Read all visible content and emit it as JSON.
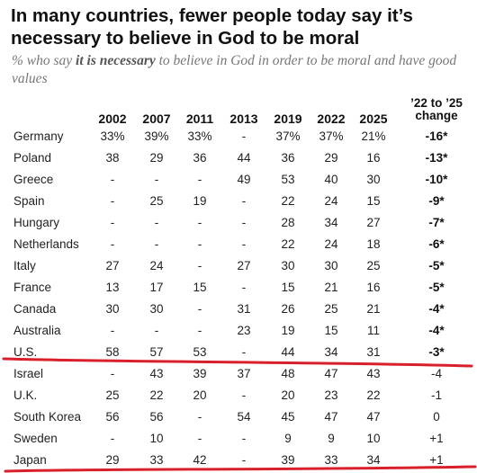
{
  "title": "In many countries, fewer people today say it’s necessary to believe in God to be moral",
  "subtitle": {
    "before": "% who say ",
    "emphasis": "it is necessary",
    "after": " to believe in God in order to be moral and have good values"
  },
  "change_header": [
    "’22 to ’25",
    "change"
  ],
  "colors": {
    "highlight_line": "#d9202a",
    "text": "#222222"
  },
  "chart_data": {
    "type": "table",
    "columns": [
      "2002",
      "2007",
      "2011",
      "2013",
      "2019",
      "2022",
      "2025"
    ],
    "rows": [
      {
        "country": "Germany",
        "values": [
          "33%",
          "39%",
          "33%",
          "-",
          "37%",
          "37%",
          "21%"
        ],
        "change": "-16*"
      },
      {
        "country": "Poland",
        "values": [
          "38",
          "29",
          "36",
          "44",
          "36",
          "29",
          "16"
        ],
        "change": "-13*"
      },
      {
        "country": "Greece",
        "values": [
          "-",
          "-",
          "-",
          "49",
          "53",
          "40",
          "30"
        ],
        "change": "-10*"
      },
      {
        "country": "Spain",
        "values": [
          "-",
          "25",
          "19",
          "-",
          "22",
          "24",
          "15"
        ],
        "change": "-9*"
      },
      {
        "country": "Hungary",
        "values": [
          "-",
          "-",
          "-",
          "-",
          "28",
          "34",
          "27"
        ],
        "change": "-7*"
      },
      {
        "country": "Netherlands",
        "values": [
          "-",
          "-",
          "-",
          "-",
          "22",
          "24",
          "18"
        ],
        "change": "-6*"
      },
      {
        "country": "Italy",
        "values": [
          "27",
          "24",
          "-",
          "27",
          "30",
          "30",
          "25"
        ],
        "change": "-5*"
      },
      {
        "country": "France",
        "values": [
          "13",
          "17",
          "15",
          "-",
          "15",
          "21",
          "16"
        ],
        "change": "-5*"
      },
      {
        "country": "Canada",
        "values": [
          "30",
          "30",
          "-",
          "31",
          "26",
          "25",
          "21"
        ],
        "change": "-4*"
      },
      {
        "country": "Australia",
        "values": [
          "-",
          "-",
          "-",
          "23",
          "19",
          "15",
          "11"
        ],
        "change": "-4*"
      },
      {
        "country": "U.S.",
        "values": [
          "58",
          "57",
          "53",
          "-",
          "44",
          "34",
          "31"
        ],
        "change": "-3*"
      },
      {
        "country": "Israel",
        "values": [
          "-",
          "43",
          "39",
          "37",
          "48",
          "47",
          "43"
        ],
        "change": "-4"
      },
      {
        "country": "U.K.",
        "values": [
          "25",
          "22",
          "20",
          "-",
          "20",
          "23",
          "22"
        ],
        "change": "-1"
      },
      {
        "country": "South Korea",
        "values": [
          "56",
          "56",
          "-",
          "54",
          "45",
          "47",
          "47"
        ],
        "change": "0"
      },
      {
        "country": "Sweden",
        "values": [
          "-",
          "10",
          "-",
          "-",
          "9",
          "9",
          "10"
        ],
        "change": "+1"
      },
      {
        "country": "Japan",
        "values": [
          "29",
          "33",
          "42",
          "-",
          "39",
          "33",
          "34"
        ],
        "change": "+1"
      }
    ],
    "highlighted_rows": [
      "U.S.",
      "Japan"
    ]
  }
}
